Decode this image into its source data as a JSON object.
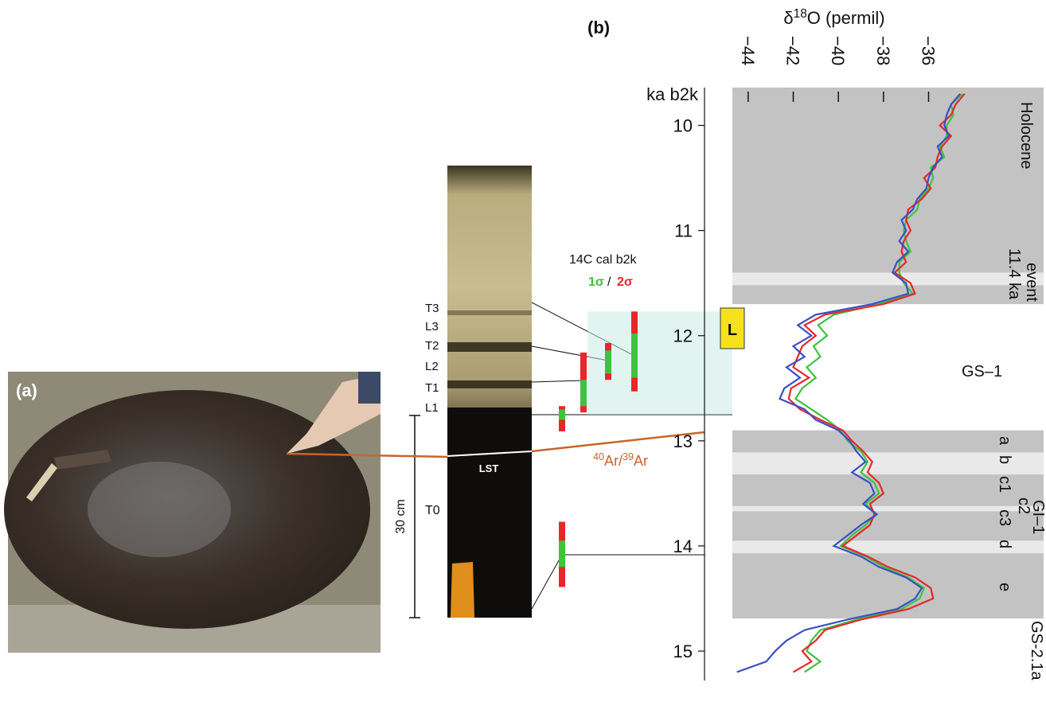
{
  "panel_a": {
    "label": "(a)"
  },
  "section": {
    "labels": [
      "T3",
      "L3",
      "T2",
      "L2",
      "T1",
      "L1"
    ],
    "lst": "LST",
    "t0": "T0",
    "scale": "30 cm",
    "c14_title": "14C cal b2k",
    "one_sigma": "1σ",
    "slash": "/",
    "two_sigma": "2σ",
    "ar_label": "40Ar/39Ar",
    "highlight": [
      11.77,
      12.75
    ],
    "radiocarbon": [
      {
        "one_sigma": [
          12.7,
          12.8
        ],
        "two_sigma": [
          12.67,
          12.91
        ]
      },
      {
        "one_sigma": [
          12.42,
          12.67
        ],
        "two_sigma": [
          12.16,
          12.73
        ]
      },
      {
        "one_sigma": [
          12.14,
          12.36
        ],
        "two_sigma": [
          12.07,
          12.42
        ]
      },
      {
        "one_sigma": [
          11.98,
          12.4
        ],
        "two_sigma": [
          11.77,
          12.53
        ]
      },
      {
        "one_sigma": [
          13.95,
          14.2
        ],
        "two_sigma": [
          13.77,
          14.39
        ]
      }
    ]
  },
  "chart_data": {
    "type": "line",
    "panel_label": "(b)",
    "title": "δ18O (permil)",
    "y_label": "ka b2k",
    "marker": "L",
    "y": [
      9.7,
      9.8,
      9.9,
      10.0,
      10.1,
      10.2,
      10.3,
      10.4,
      10.5,
      10.6,
      10.7,
      10.8,
      10.9,
      11.0,
      11.1,
      11.2,
      11.3,
      11.4,
      11.5,
      11.6,
      11.7,
      11.8,
      11.9,
      12.0,
      12.1,
      12.2,
      12.3,
      12.4,
      12.5,
      12.6,
      12.7,
      12.8,
      12.9,
      13.0,
      13.1,
      13.2,
      13.3,
      13.4,
      13.5,
      13.6,
      13.7,
      13.8,
      13.9,
      14.0,
      14.1,
      14.2,
      14.3,
      14.4,
      14.5,
      14.6,
      14.7,
      14.8,
      14.9,
      15.0,
      15.1,
      15.2
    ],
    "series": [
      {
        "color": "#3cc43c",
        "values": [
          -34.5,
          -35.0,
          -34.9,
          -35.2,
          -35.2,
          -35.5,
          -35.3,
          -35.9,
          -35.8,
          -36.0,
          -36.4,
          -36.5,
          -37.0,
          -37.1,
          -37.0,
          -36.8,
          -37.3,
          -37.3,
          -37.1,
          -36.7,
          -38.2,
          -40.2,
          -40.9,
          -40.5,
          -41.1,
          -40.8,
          -41.4,
          -41.0,
          -41.6,
          -41.9,
          -41.2,
          -40.5,
          -39.9,
          -39.6,
          -39.0,
          -38.7,
          -39.0,
          -38.4,
          -38.2,
          -38.8,
          -38.3,
          -38.8,
          -39.4,
          -39.9,
          -38.8,
          -38.0,
          -36.9,
          -36.2,
          -36.4,
          -37.2,
          -39.2,
          -40.8,
          -41.2,
          -41.4,
          -40.8,
          -41.5
        ]
      },
      {
        "color": "#e8262b",
        "values": [
          -34.4,
          -34.8,
          -35.0,
          -35.5,
          -35.0,
          -35.4,
          -35.6,
          -35.7,
          -36.2,
          -35.9,
          -36.3,
          -36.9,
          -37.0,
          -36.8,
          -37.1,
          -37.2,
          -37.0,
          -37.5,
          -36.8,
          -36.6,
          -38.0,
          -40.6,
          -41.5,
          -41.0,
          -41.6,
          -41.8,
          -42.0,
          -41.3,
          -42.1,
          -42.2,
          -41.7,
          -40.8,
          -39.8,
          -39.4,
          -38.9,
          -38.5,
          -38.7,
          -38.2,
          -38.0,
          -38.6,
          -38.4,
          -38.6,
          -39.2,
          -39.8,
          -38.7,
          -37.8,
          -36.6,
          -35.9,
          -35.8,
          -36.9,
          -39.0,
          -40.6,
          -41.0,
          -41.6,
          -41.2,
          -42.0
        ]
      },
      {
        "color": "#3a4fc4",
        "values": [
          -34.6,
          -35.0,
          -35.2,
          -35.3,
          -35.1,
          -35.6,
          -35.4,
          -35.8,
          -36.0,
          -36.1,
          -36.5,
          -36.7,
          -37.2,
          -37.0,
          -37.3,
          -36.9,
          -37.4,
          -37.6,
          -37.0,
          -36.9,
          -38.5,
          -41.0,
          -41.8,
          -41.2,
          -42.0,
          -41.5,
          -42.3,
          -41.7,
          -42.4,
          -42.6,
          -41.5,
          -41.0,
          -40.0,
          -39.5,
          -39.2,
          -38.8,
          -39.4,
          -38.6,
          -38.4,
          -38.9,
          -38.3,
          -39.0,
          -39.6,
          -40.2,
          -39.0,
          -38.2,
          -37.0,
          -36.3,
          -36.6,
          -37.4,
          -39.6,
          -41.5,
          -42.3,
          -42.8,
          -43.2,
          -44.5
        ]
      }
    ],
    "xlim": [
      -44.7,
      -30.9
    ],
    "xticks": [
      {
        "value": -44,
        "label": "−44"
      },
      {
        "value": -42,
        "label": "−42"
      },
      {
        "value": -40,
        "label": "−40"
      },
      {
        "value": -38,
        "label": "−38"
      },
      {
        "value": -36,
        "label": "−36"
      }
    ],
    "ylim": [
      9.64,
      15.28
    ],
    "yticks": [
      10,
      11,
      12,
      13,
      14,
      15
    ],
    "shaded": [
      [
        9.64,
        11.7
      ],
      [
        12.9,
        14.69
      ]
    ],
    "light": [
      [
        11.4,
        11.52
      ],
      [
        13.11,
        13.32
      ],
      [
        13.62,
        13.67
      ],
      [
        13.95,
        14.07
      ]
    ],
    "annotations": [
      "Holocene",
      "11.4 ka",
      "event",
      "GS–1",
      "a",
      "b",
      "c1",
      "c2",
      "GI–1",
      "c3",
      "d",
      "e",
      "GS-2.1a"
    ]
  }
}
